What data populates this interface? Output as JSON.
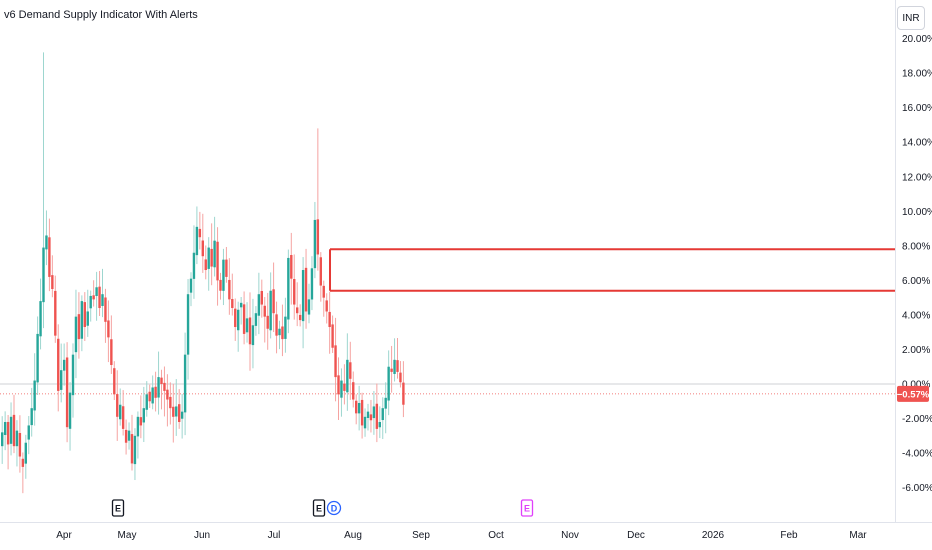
{
  "indicator": {
    "title": "v6 Demand Supply Indicator With Alerts"
  },
  "currency_button": {
    "label": "INR"
  },
  "price_axis": {
    "ticks": [
      "20.00%",
      "18.00%",
      "16.00%",
      "14.00%",
      "12.00%",
      "10.00%",
      "8.00%",
      "6.00%",
      "4.00%",
      "2.00%",
      "0.00%",
      "-2.00%",
      "-4.00%",
      "-6.00%"
    ],
    "tick_values": [
      20,
      18,
      16,
      14,
      12,
      10,
      8,
      6,
      4,
      2,
      0,
      -2,
      -4,
      -6
    ],
    "current_label": "−0.57%",
    "current_value": -0.57
  },
  "time_axis": {
    "labels": [
      "Apr",
      "May",
      "Jun",
      "Jul",
      "Aug",
      "Sep",
      "Oct",
      "Nov",
      "Dec",
      "2026",
      "Feb",
      "Mar"
    ]
  },
  "events": [
    {
      "label": "E",
      "color": "#131722"
    },
    {
      "label": "E",
      "color": "#131722"
    },
    {
      "label": "D",
      "color": "#2962ff"
    },
    {
      "label": "E",
      "color": "#e040fb"
    }
  ],
  "zones": [
    {
      "type": "supply",
      "upper": 7.8,
      "lower": 5.4,
      "color": "#e53935"
    }
  ],
  "colors": {
    "up": "#26a69a",
    "down": "#ef5350",
    "wick_up": "#9dd6cf",
    "wick_down": "#f5a3a1",
    "zone": "#e53935",
    "baseline": "#787b86",
    "current": "#ef5350",
    "axis_text": "#131722"
  },
  "price_series": [
    -2.8,
    -2.2,
    -3.5,
    -1.9,
    -3.6,
    -2.7,
    -4.2,
    -4.8,
    -3.4,
    -2.4,
    -1.4,
    0.2,
    2.9,
    4.8,
    7.9,
    8.6,
    6.2,
    5.5,
    2.8,
    -0.4,
    0.8,
    1.4,
    -2.5,
    -0.5,
    1.7,
    3.9,
    2.6,
    4.8,
    3.3,
    4.2,
    5.1,
    4.9,
    5.6,
    4.4,
    5.2,
    3.6,
    2.7,
    1.1,
    -0.6,
    -1.9,
    -1.2,
    -2.6,
    -3.4,
    -2.7,
    -4.6,
    -3.0,
    -1.9,
    -2.4,
    -1.4,
    -0.6,
    -1.0,
    -0.2,
    -0.8,
    0.4,
    0.0,
    -0.4,
    -0.9,
    -1.4,
    -1.9,
    -1.3,
    -2.2,
    -1.6,
    1.7,
    5.2,
    6.1,
    7.6,
    9.1,
    8.5,
    7.4,
    6.6,
    7.9,
    6.8,
    8.3,
    6.0,
    5.4,
    7.2,
    6.2,
    4.9,
    4.4,
    3.3,
    4.3,
    4.7,
    2.9,
    3.8,
    2.3,
    3.4,
    4.1,
    5.2,
    4.6,
    3.9,
    3.2,
    5.4,
    4.1,
    2.8,
    3.2,
    2.6,
    3.9,
    7.3,
    6.1,
    4.6,
    4.1,
    3.7,
    6.6,
    4.2,
    4.9,
    6.7,
    9.5,
    7.5,
    5.7,
    5.0,
    4.2,
    3.3,
    2.1,
    0.4,
    -0.6,
    0.2,
    -0.4,
    1.4,
    0.3,
    -0.9,
    -1.7,
    -1.1,
    -2.4,
    -1.9,
    -1.6,
    -2.1,
    -1.3,
    -2.6,
    -2.2,
    -1.4,
    -0.8,
    1.0,
    0.7,
    1.4,
    0.7,
    0.1,
    -1.2
  ]
}
